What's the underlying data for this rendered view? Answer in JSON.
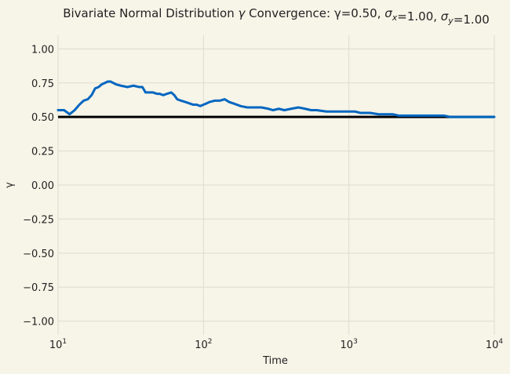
{
  "chart_data": {
    "type": "line",
    "title_parts": [
      {
        "text": "Bivariate Normal Distribution ",
        "style": "normal"
      },
      {
        "text": "γ",
        "style": "italic"
      },
      {
        "text": " Convergence: γ=0.50, ",
        "style": "normal"
      },
      {
        "text": "σ",
        "style": "italic"
      },
      {
        "text": "x",
        "style": "sub"
      },
      {
        "text": "=1.00, ",
        "style": "normal"
      },
      {
        "text": "σ",
        "style": "italic"
      },
      {
        "text": "y",
        "style": "sub"
      },
      {
        "text": "=1.00",
        "style": "normal"
      }
    ],
    "xlabel": "Time",
    "ylabel": "γ",
    "xscale": "log",
    "xlim": [
      10,
      10000
    ],
    "ylim": [
      -1.1,
      1.1
    ],
    "grid": true,
    "x_ticks": [
      {
        "base": "10",
        "exp": "1"
      },
      {
        "base": "10",
        "exp": "2"
      },
      {
        "base": "10",
        "exp": "3"
      },
      {
        "base": "10",
        "exp": "4"
      }
    ],
    "y_ticks": [
      "−1.00",
      "−0.75",
      "−0.50",
      "−0.25",
      "0.00",
      "0.25",
      "0.50",
      "0.75",
      "1.00"
    ],
    "y_tick_values": [
      -1.0,
      -0.75,
      -0.5,
      -0.25,
      0.0,
      0.25,
      0.5,
      0.75,
      1.0
    ],
    "true_value": 0.5,
    "colors": {
      "series": "#0066c0",
      "reference": "#000000",
      "grid": "#dedbd0",
      "background": "#f7f4e8"
    },
    "series": [
      {
        "x": [
          10,
          11,
          12,
          13,
          14,
          15,
          16,
          17,
          18,
          19,
          20,
          21,
          22,
          23,
          25,
          27,
          30,
          33,
          36,
          38,
          40,
          42,
          45,
          48,
          50,
          53,
          56,
          60,
          63,
          66,
          70,
          75,
          80,
          85,
          90,
          95,
          100,
          105,
          110,
          120,
          130,
          140,
          150,
          160,
          170,
          180,
          200,
          220,
          250,
          280,
          300,
          330,
          360,
          400,
          450,
          500,
          550,
          600,
          700,
          800,
          900,
          1000,
          1100,
          1200,
          1400,
          1600,
          1800,
          2000,
          2200,
          2500,
          2800,
          3000,
          3500,
          4000,
          4500,
          5000,
          6000,
          7000,
          8000,
          9000,
          10000
        ],
        "y": [
          0.55,
          0.55,
          0.52,
          0.55,
          0.59,
          0.62,
          0.63,
          0.66,
          0.71,
          0.72,
          0.74,
          0.75,
          0.76,
          0.76,
          0.74,
          0.73,
          0.72,
          0.73,
          0.72,
          0.72,
          0.68,
          0.68,
          0.68,
          0.67,
          0.67,
          0.66,
          0.67,
          0.68,
          0.66,
          0.63,
          0.62,
          0.61,
          0.6,
          0.59,
          0.59,
          0.58,
          0.59,
          0.6,
          0.61,
          0.62,
          0.62,
          0.63,
          0.61,
          0.6,
          0.59,
          0.58,
          0.57,
          0.57,
          0.57,
          0.56,
          0.55,
          0.56,
          0.55,
          0.56,
          0.57,
          0.56,
          0.55,
          0.55,
          0.54,
          0.54,
          0.54,
          0.54,
          0.54,
          0.53,
          0.53,
          0.52,
          0.52,
          0.52,
          0.51,
          0.51,
          0.51,
          0.51,
          0.51,
          0.51,
          0.51,
          0.5,
          0.5,
          0.5,
          0.5,
          0.5,
          0.5
        ]
      }
    ]
  }
}
